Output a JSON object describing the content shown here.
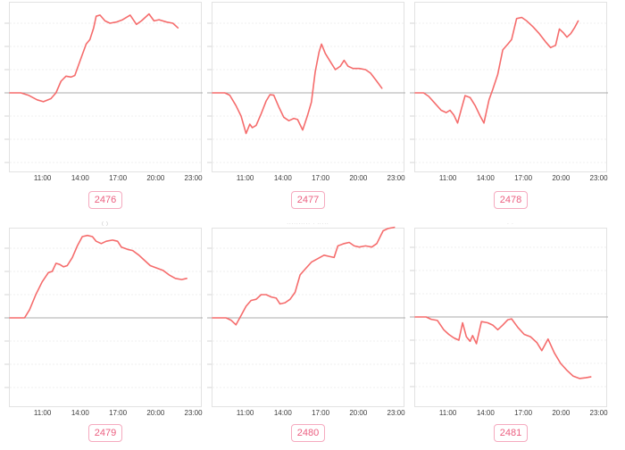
{
  "colors": {
    "line": "#f56c6c",
    "zero_line": "#ababab",
    "gridline": "#efefef",
    "tick_mark": "#d4d4d4",
    "plot_border": "#e2e2e2",
    "badge_border": "#f5aabf",
    "badge_text": "#eb5f80",
    "axis_text": "#3c3c3c",
    "background": "#ffffff"
  },
  "x_axis": {
    "ticks": [
      "11:00",
      "14:00",
      "17:00",
      "20:00",
      "23:00"
    ],
    "tick_hours": [
      11,
      14,
      17,
      20,
      23
    ],
    "range_hours": [
      8.33,
      23.67
    ]
  },
  "fragments": [
    "· ·",
    "",
    "· ·",
    "( )",
    "·········· · ·····",
    "· ·"
  ],
  "chart_data": [
    {
      "type": "line",
      "badge": "2476",
      "title": "",
      "xlabel": "",
      "ylabel": "",
      "x_ticks": [
        "11:00",
        "14:00",
        "17:00",
        "20:00",
        "23:00"
      ],
      "baseline_frac": 0.534,
      "ylim": [
        -3.5,
        3.9
      ],
      "grid": "dotted-horizontal",
      "legend": "none",
      "series": [
        {
          "name": "value-vs-baseline",
          "points": [
            [
              8.33,
              0
            ],
            [
              9.2,
              0
            ],
            [
              9.8,
              -0.1
            ],
            [
              10.5,
              -0.3
            ],
            [
              11.0,
              -0.38
            ],
            [
              11.6,
              -0.25
            ],
            [
              12.0,
              0
            ],
            [
              12.4,
              0.5
            ],
            [
              12.8,
              0.72
            ],
            [
              13.2,
              0.68
            ],
            [
              13.5,
              0.75
            ],
            [
              14.0,
              1.5
            ],
            [
              14.4,
              2.1
            ],
            [
              14.7,
              2.3
            ],
            [
              15.0,
              2.8
            ],
            [
              15.2,
              3.3
            ],
            [
              15.5,
              3.35
            ],
            [
              15.9,
              3.1
            ],
            [
              16.3,
              3.0
            ],
            [
              16.8,
              3.05
            ],
            [
              17.3,
              3.15
            ],
            [
              17.9,
              3.35
            ],
            [
              18.4,
              2.95
            ],
            [
              18.8,
              3.1
            ],
            [
              19.4,
              3.4
            ],
            [
              19.8,
              3.1
            ],
            [
              20.2,
              3.15
            ],
            [
              20.8,
              3.05
            ],
            [
              21.3,
              3.0
            ],
            [
              21.7,
              2.8
            ]
          ]
        }
      ]
    },
    {
      "type": "line",
      "badge": "2477",
      "title": "",
      "xlabel": "",
      "ylabel": "",
      "x_ticks": [
        "11:00",
        "14:00",
        "17:00",
        "20:00",
        "23:00"
      ],
      "baseline_frac": 0.534,
      "ylim": [
        -3.5,
        3.9
      ],
      "grid": "dotted-horizontal",
      "legend": "none",
      "series": [
        {
          "name": "value-vs-baseline",
          "points": [
            [
              8.33,
              0
            ],
            [
              9.3,
              0
            ],
            [
              9.7,
              -0.1
            ],
            [
              10.2,
              -0.55
            ],
            [
              10.6,
              -1.0
            ],
            [
              11.0,
              -1.75
            ],
            [
              11.3,
              -1.35
            ],
            [
              11.5,
              -1.5
            ],
            [
              11.8,
              -1.4
            ],
            [
              12.2,
              -0.9
            ],
            [
              12.6,
              -0.35
            ],
            [
              12.9,
              -0.08
            ],
            [
              13.2,
              -0.1
            ],
            [
              13.6,
              -0.6
            ],
            [
              14.0,
              -1.05
            ],
            [
              14.4,
              -1.2
            ],
            [
              14.8,
              -1.1
            ],
            [
              15.1,
              -1.15
            ],
            [
              15.5,
              -1.6
            ],
            [
              15.9,
              -0.95
            ],
            [
              16.2,
              -0.4
            ],
            [
              16.5,
              0.9
            ],
            [
              16.8,
              1.75
            ],
            [
              17.0,
              2.1
            ],
            [
              17.3,
              1.7
            ],
            [
              17.7,
              1.35
            ],
            [
              18.1,
              1.0
            ],
            [
              18.5,
              1.15
            ],
            [
              18.8,
              1.4
            ],
            [
              19.1,
              1.15
            ],
            [
              19.5,
              1.05
            ],
            [
              20.0,
              1.05
            ],
            [
              20.5,
              1.0
            ],
            [
              20.9,
              0.85
            ],
            [
              21.4,
              0.5
            ],
            [
              21.8,
              0.2
            ]
          ]
        }
      ]
    },
    {
      "type": "line",
      "badge": "2478",
      "title": "",
      "xlabel": "",
      "ylabel": "",
      "x_ticks": [
        "11:00",
        "14:00",
        "17:00",
        "20:00",
        "23:00"
      ],
      "baseline_frac": 0.534,
      "ylim": [
        -3.5,
        3.9
      ],
      "grid": "dotted-horizontal",
      "legend": "none",
      "series": [
        {
          "name": "value-vs-baseline",
          "points": [
            [
              8.33,
              0
            ],
            [
              9.0,
              0
            ],
            [
              9.4,
              -0.15
            ],
            [
              9.9,
              -0.45
            ],
            [
              10.4,
              -0.75
            ],
            [
              10.8,
              -0.85
            ],
            [
              11.1,
              -0.75
            ],
            [
              11.4,
              -0.95
            ],
            [
              11.7,
              -1.3
            ],
            [
              12.0,
              -0.7
            ],
            [
              12.3,
              -0.12
            ],
            [
              12.7,
              -0.2
            ],
            [
              13.1,
              -0.55
            ],
            [
              13.5,
              -1.0
            ],
            [
              13.8,
              -1.3
            ],
            [
              14.2,
              -0.3
            ],
            [
              14.5,
              0.15
            ],
            [
              14.9,
              0.8
            ],
            [
              15.3,
              1.85
            ],
            [
              15.7,
              2.1
            ],
            [
              16.0,
              2.3
            ],
            [
              16.4,
              3.2
            ],
            [
              16.8,
              3.25
            ],
            [
              17.2,
              3.1
            ],
            [
              17.7,
              2.85
            ],
            [
              18.2,
              2.55
            ],
            [
              18.7,
              2.2
            ],
            [
              19.1,
              1.95
            ],
            [
              19.5,
              2.05
            ],
            [
              19.8,
              2.75
            ],
            [
              20.1,
              2.6
            ],
            [
              20.4,
              2.4
            ],
            [
              20.7,
              2.55
            ],
            [
              21.0,
              2.8
            ],
            [
              21.3,
              3.1
            ]
          ]
        }
      ]
    },
    {
      "type": "line",
      "badge": "2479",
      "title": "",
      "xlabel": "",
      "ylabel": "",
      "x_ticks": [
        "11:00",
        "14:00",
        "17:00",
        "20:00",
        "23:00"
      ],
      "baseline_frac": 0.502,
      "ylim": [
        -3.85,
        3.9
      ],
      "grid": "dotted-horizontal",
      "legend": "none",
      "series": [
        {
          "name": "value-vs-baseline",
          "points": [
            [
              8.33,
              0
            ],
            [
              9.5,
              0
            ],
            [
              9.9,
              0.35
            ],
            [
              10.4,
              1.0
            ],
            [
              10.9,
              1.55
            ],
            [
              11.4,
              1.95
            ],
            [
              11.7,
              2.0
            ],
            [
              12.0,
              2.35
            ],
            [
              12.3,
              2.3
            ],
            [
              12.6,
              2.2
            ],
            [
              12.9,
              2.25
            ],
            [
              13.3,
              2.6
            ],
            [
              13.7,
              3.1
            ],
            [
              14.1,
              3.5
            ],
            [
              14.5,
              3.55
            ],
            [
              14.9,
              3.5
            ],
            [
              15.2,
              3.3
            ],
            [
              15.6,
              3.2
            ],
            [
              16.0,
              3.3
            ],
            [
              16.5,
              3.35
            ],
            [
              16.9,
              3.3
            ],
            [
              17.2,
              3.05
            ],
            [
              17.7,
              2.95
            ],
            [
              18.1,
              2.9
            ],
            [
              18.6,
              2.7
            ],
            [
              19.0,
              2.5
            ],
            [
              19.5,
              2.25
            ],
            [
              20.0,
              2.15
            ],
            [
              20.5,
              2.05
            ],
            [
              21.0,
              1.85
            ],
            [
              21.5,
              1.7
            ],
            [
              22.0,
              1.65
            ],
            [
              22.4,
              1.7
            ]
          ]
        }
      ]
    },
    {
      "type": "line",
      "badge": "2480",
      "title": "",
      "xlabel": "",
      "ylabel": "",
      "x_ticks": [
        "11:00",
        "14:00",
        "17:00",
        "20:00",
        "23:00"
      ],
      "baseline_frac": 0.502,
      "ylim": [
        -3.85,
        3.9
      ],
      "grid": "dotted-horizontal",
      "legend": "none",
      "series": [
        {
          "name": "value-vs-baseline",
          "points": [
            [
              8.33,
              0
            ],
            [
              9.4,
              0
            ],
            [
              9.8,
              -0.1
            ],
            [
              10.2,
              -0.3
            ],
            [
              10.6,
              0.1
            ],
            [
              11.0,
              0.5
            ],
            [
              11.4,
              0.75
            ],
            [
              11.8,
              0.8
            ],
            [
              12.2,
              1.0
            ],
            [
              12.6,
              1.0
            ],
            [
              13.0,
              0.9
            ],
            [
              13.4,
              0.85
            ],
            [
              13.7,
              0.6
            ],
            [
              14.1,
              0.65
            ],
            [
              14.5,
              0.8
            ],
            [
              14.9,
              1.1
            ],
            [
              15.3,
              1.85
            ],
            [
              15.7,
              2.1
            ],
            [
              16.2,
              2.4
            ],
            [
              16.7,
              2.55
            ],
            [
              17.2,
              2.7
            ],
            [
              17.6,
              2.65
            ],
            [
              18.0,
              2.6
            ],
            [
              18.3,
              3.1
            ],
            [
              18.8,
              3.2
            ],
            [
              19.2,
              3.25
            ],
            [
              19.6,
              3.1
            ],
            [
              20.0,
              3.05
            ],
            [
              20.5,
              3.1
            ],
            [
              21.0,
              3.05
            ],
            [
              21.4,
              3.2
            ],
            [
              21.9,
              3.75
            ],
            [
              22.3,
              3.85
            ],
            [
              22.8,
              3.9
            ]
          ]
        }
      ]
    },
    {
      "type": "line",
      "badge": "2481",
      "title": "",
      "xlabel": "",
      "ylabel": "",
      "x_ticks": [
        "11:00",
        "14:00",
        "17:00",
        "20:00",
        "23:00"
      ],
      "baseline_frac": 0.497,
      "ylim": [
        -3.85,
        3.9
      ],
      "grid": "dotted-horizontal",
      "legend": "none",
      "series": [
        {
          "name": "value-vs-baseline",
          "points": [
            [
              8.33,
              0
            ],
            [
              9.2,
              0
            ],
            [
              9.6,
              -0.1
            ],
            [
              10.1,
              -0.15
            ],
            [
              10.6,
              -0.55
            ],
            [
              11.0,
              -0.75
            ],
            [
              11.4,
              -0.9
            ],
            [
              11.8,
              -1.0
            ],
            [
              12.1,
              -0.25
            ],
            [
              12.4,
              -0.85
            ],
            [
              12.7,
              -1.05
            ],
            [
              12.9,
              -0.8
            ],
            [
              13.2,
              -1.15
            ],
            [
              13.6,
              -0.2
            ],
            [
              14.1,
              -0.25
            ],
            [
              14.5,
              -0.35
            ],
            [
              14.9,
              -0.55
            ],
            [
              15.3,
              -0.35
            ],
            [
              15.7,
              -0.12
            ],
            [
              16.0,
              -0.08
            ],
            [
              16.5,
              -0.45
            ],
            [
              17.0,
              -0.75
            ],
            [
              17.5,
              -0.85
            ],
            [
              18.0,
              -1.1
            ],
            [
              18.4,
              -1.45
            ],
            [
              18.9,
              -0.95
            ],
            [
              19.4,
              -1.55
            ],
            [
              19.9,
              -2.0
            ],
            [
              20.4,
              -2.3
            ],
            [
              20.9,
              -2.55
            ],
            [
              21.4,
              -2.65
            ],
            [
              21.9,
              -2.62
            ],
            [
              22.3,
              -2.58
            ]
          ]
        }
      ]
    }
  ]
}
